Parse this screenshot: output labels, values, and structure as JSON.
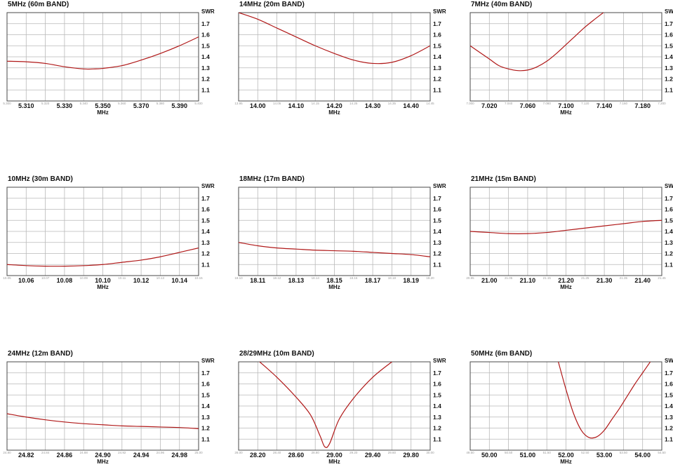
{
  "colors": {
    "curve": "#b01818",
    "grid": "#b9b9b9",
    "frame": "#4a4a4a",
    "text": "#111111"
  },
  "chart_data": [
    {
      "type": "line",
      "title": "5MHz (60m BAND)",
      "ylabel": "SWR",
      "xlabel": "MHz",
      "ylim": [
        1.0,
        1.8
      ],
      "yticks": [
        "1.1",
        "1.2",
        "1.3",
        "1.4",
        "1.5",
        "1.6",
        "1.7"
      ],
      "xlim": [
        5.3,
        5.4
      ],
      "xticks": [
        {
          "label": "5.300",
          "major": false
        },
        {
          "label": "5.310",
          "major": true
        },
        {
          "label": "5.320",
          "major": false
        },
        {
          "label": "5.330",
          "major": true
        },
        {
          "label": "5.340",
          "major": false
        },
        {
          "label": "5.350",
          "major": true
        },
        {
          "label": "5.360",
          "major": false
        },
        {
          "label": "5.370",
          "major": true
        },
        {
          "label": "5.380",
          "major": false
        },
        {
          "label": "5.390",
          "major": true
        },
        {
          "label": "5.400",
          "major": false
        }
      ],
      "series": [
        {
          "x": [
            5.3,
            5.31,
            5.32,
            5.33,
            5.34,
            5.345,
            5.35,
            5.36,
            5.37,
            5.38,
            5.39,
            5.4
          ],
          "y": [
            1.36,
            1.355,
            1.34,
            1.31,
            1.29,
            1.29,
            1.295,
            1.32,
            1.37,
            1.43,
            1.5,
            1.58
          ]
        }
      ]
    },
    {
      "type": "line",
      "title": "14MHz (20m BAND)",
      "ylabel": "SWR",
      "xlabel": "MHz",
      "ylim": [
        1.0,
        1.8
      ],
      "yticks": [
        "1.1",
        "1.2",
        "1.3",
        "1.4",
        "1.5",
        "1.6",
        "1.7"
      ],
      "xlim": [
        13.95,
        14.45
      ],
      "xticks": [
        {
          "label": "13.95",
          "major": false
        },
        {
          "label": "14.00",
          "major": true
        },
        {
          "label": "14.05",
          "major": false
        },
        {
          "label": "14.10",
          "major": true
        },
        {
          "label": "14.15",
          "major": false
        },
        {
          "label": "14.20",
          "major": true
        },
        {
          "label": "14.25",
          "major": false
        },
        {
          "label": "14.30",
          "major": true
        },
        {
          "label": "14.35",
          "major": false
        },
        {
          "label": "14.40",
          "major": true
        },
        {
          "label": "14.45",
          "major": false
        }
      ],
      "series": [
        {
          "x": [
            13.95,
            14.0,
            14.05,
            14.1,
            14.15,
            14.2,
            14.25,
            14.3,
            14.35,
            14.4,
            14.45
          ],
          "y": [
            1.8,
            1.74,
            1.66,
            1.58,
            1.5,
            1.43,
            1.37,
            1.34,
            1.35,
            1.41,
            1.5
          ]
        }
      ]
    },
    {
      "type": "line",
      "title": "7MHz (40m BAND)",
      "ylabel": "SWR",
      "xlabel": "MHz",
      "ylim": [
        1.0,
        1.8
      ],
      "yticks": [
        "1.1",
        "1.2",
        "1.3",
        "1.4",
        "1.5",
        "1.6",
        "1.7"
      ],
      "xlim": [
        7.0,
        7.2
      ],
      "xticks": [
        {
          "label": "7.000",
          "major": false
        },
        {
          "label": "7.020",
          "major": true
        },
        {
          "label": "7.040",
          "major": false
        },
        {
          "label": "7.060",
          "major": true
        },
        {
          "label": "7.080",
          "major": false
        },
        {
          "label": "7.100",
          "major": true
        },
        {
          "label": "7.120",
          "major": false
        },
        {
          "label": "7.140",
          "major": true
        },
        {
          "label": "7.160",
          "major": false
        },
        {
          "label": "7.180",
          "major": true
        },
        {
          "label": "7.200",
          "major": false
        }
      ],
      "series": [
        {
          "x": [
            7.0,
            7.01,
            7.02,
            7.03,
            7.04,
            7.05,
            7.06,
            7.07,
            7.08,
            7.09,
            7.1,
            7.11,
            7.12,
            7.13,
            7.139
          ],
          "y": [
            1.5,
            1.44,
            1.38,
            1.32,
            1.29,
            1.275,
            1.28,
            1.31,
            1.36,
            1.43,
            1.51,
            1.59,
            1.67,
            1.74,
            1.8
          ]
        }
      ]
    },
    {
      "type": "line",
      "title": "10MHz (30m BAND)",
      "ylabel": "SWR",
      "xlabel": "MHz",
      "ylim": [
        1.0,
        1.8
      ],
      "yticks": [
        "1.1",
        "1.2",
        "1.3",
        "1.4",
        "1.5",
        "1.6",
        "1.7"
      ],
      "xlim": [
        10.05,
        10.15
      ],
      "xticks": [
        {
          "label": "10.05",
          "major": false
        },
        {
          "label": "10.06",
          "major": true
        },
        {
          "label": "10.07",
          "major": false
        },
        {
          "label": "10.08",
          "major": true
        },
        {
          "label": "10.09",
          "major": false
        },
        {
          "label": "10.10",
          "major": true
        },
        {
          "label": "10.11",
          "major": false
        },
        {
          "label": "10.12",
          "major": true
        },
        {
          "label": "10.13",
          "major": false
        },
        {
          "label": "10.14",
          "major": true
        },
        {
          "label": "10.15",
          "major": false
        }
      ],
      "series": [
        {
          "x": [
            10.05,
            10.06,
            10.07,
            10.08,
            10.09,
            10.1,
            10.11,
            10.12,
            10.13,
            10.14,
            10.15
          ],
          "y": [
            1.1,
            1.09,
            1.085,
            1.085,
            1.09,
            1.1,
            1.12,
            1.14,
            1.17,
            1.21,
            1.25
          ]
        }
      ]
    },
    {
      "type": "line",
      "title": "18MHz (17m BAND)",
      "ylabel": "SWR",
      "xlabel": "MHz",
      "ylim": [
        1.0,
        1.8
      ],
      "yticks": [
        "1.1",
        "1.2",
        "1.3",
        "1.4",
        "1.5",
        "1.6",
        "1.7"
      ],
      "xlim": [
        18.1,
        18.2
      ],
      "xticks": [
        {
          "label": "18.10",
          "major": false
        },
        {
          "label": "18.11",
          "major": true
        },
        {
          "label": "18.12",
          "major": false
        },
        {
          "label": "18.13",
          "major": true
        },
        {
          "label": "18.14",
          "major": false
        },
        {
          "label": "18.15",
          "major": true
        },
        {
          "label": "18.16",
          "major": false
        },
        {
          "label": "18.17",
          "major": true
        },
        {
          "label": "18.18",
          "major": false
        },
        {
          "label": "18.19",
          "major": true
        },
        {
          "label": "18.20",
          "major": false
        }
      ],
      "series": [
        {
          "x": [
            18.1,
            18.11,
            18.12,
            18.13,
            18.14,
            18.15,
            18.16,
            18.17,
            18.18,
            18.19,
            18.2
          ],
          "y": [
            1.3,
            1.27,
            1.25,
            1.24,
            1.23,
            1.225,
            1.22,
            1.21,
            1.2,
            1.19,
            1.17
          ]
        }
      ]
    },
    {
      "type": "line",
      "title": "21MHz (15m BAND)",
      "ylabel": "SWR",
      "xlabel": "MHz",
      "ylim": [
        1.0,
        1.8
      ],
      "yticks": [
        "1.1",
        "1.2",
        "1.3",
        "1.4",
        "1.5",
        "1.6",
        "1.7"
      ],
      "xlim": [
        20.95,
        21.45
      ],
      "xticks": [
        {
          "label": "20.95",
          "major": false
        },
        {
          "label": "21.00",
          "major": true
        },
        {
          "label": "21.05",
          "major": false
        },
        {
          "label": "21.10",
          "major": true
        },
        {
          "label": "21.15",
          "major": false
        },
        {
          "label": "21.20",
          "major": true
        },
        {
          "label": "21.25",
          "major": false
        },
        {
          "label": "21.30",
          "major": true
        },
        {
          "label": "21.35",
          "major": false
        },
        {
          "label": "21.40",
          "major": true
        },
        {
          "label": "21.45",
          "major": false
        }
      ],
      "series": [
        {
          "x": [
            20.95,
            21.0,
            21.05,
            21.1,
            21.15,
            21.2,
            21.25,
            21.3,
            21.35,
            21.4,
            21.45
          ],
          "y": [
            1.4,
            1.39,
            1.38,
            1.38,
            1.39,
            1.41,
            1.43,
            1.45,
            1.47,
            1.49,
            1.5
          ]
        }
      ]
    },
    {
      "type": "line",
      "title": "24MHz (12m BAND)",
      "ylabel": "SWR",
      "xlabel": "MHz",
      "ylim": [
        1.0,
        1.8
      ],
      "yticks": [
        "1.1",
        "1.2",
        "1.3",
        "1.4",
        "1.5",
        "1.6",
        "1.7"
      ],
      "xlim": [
        24.8,
        25.0
      ],
      "xticks": [
        {
          "label": "24.80",
          "major": false
        },
        {
          "label": "24.82",
          "major": true
        },
        {
          "label": "24.84",
          "major": false
        },
        {
          "label": "24.86",
          "major": true
        },
        {
          "label": "24.88",
          "major": false
        },
        {
          "label": "24.90",
          "major": true
        },
        {
          "label": "24.92",
          "major": false
        },
        {
          "label": "24.94",
          "major": true
        },
        {
          "label": "24.96",
          "major": false
        },
        {
          "label": "24.98",
          "major": true
        },
        {
          "label": "25.00",
          "major": false
        }
      ],
      "series": [
        {
          "x": [
            24.8,
            24.82,
            24.84,
            24.86,
            24.88,
            24.9,
            24.92,
            24.94,
            24.96,
            24.98,
            25.0
          ],
          "y": [
            1.33,
            1.3,
            1.275,
            1.255,
            1.24,
            1.23,
            1.22,
            1.215,
            1.21,
            1.205,
            1.195
          ]
        }
      ]
    },
    {
      "type": "line",
      "title": "28/29MHz (10m BAND)",
      "ylabel": "SWR",
      "xlabel": "MHz",
      "ylim": [
        1.0,
        1.8
      ],
      "yticks": [
        "1.1",
        "1.2",
        "1.3",
        "1.4",
        "1.5",
        "1.6",
        "1.7"
      ],
      "xlim": [
        28.0,
        30.0
      ],
      "xticks": [
        {
          "label": "28.00",
          "major": false
        },
        {
          "label": "28.20",
          "major": true
        },
        {
          "label": "28.40",
          "major": false
        },
        {
          "label": "28.60",
          "major": true
        },
        {
          "label": "28.80",
          "major": false
        },
        {
          "label": "29.00",
          "major": true
        },
        {
          "label": "29.20",
          "major": false
        },
        {
          "label": "29.40",
          "major": true
        },
        {
          "label": "29.60",
          "major": false
        },
        {
          "label": "29.80",
          "major": true
        },
        {
          "label": "30.00",
          "major": false
        }
      ],
      "series": [
        {
          "x": [
            28.22,
            28.4,
            28.6,
            28.75,
            28.85,
            28.9,
            28.95,
            29.05,
            29.2,
            29.4,
            29.6
          ],
          "y": [
            1.8,
            1.66,
            1.48,
            1.32,
            1.13,
            1.03,
            1.06,
            1.28,
            1.47,
            1.66,
            1.8
          ]
        }
      ]
    },
    {
      "type": "line",
      "title": "50MHz (6m BAND)",
      "ylabel": "SWR",
      "xlabel": "MHz",
      "ylim": [
        1.0,
        1.8
      ],
      "yticks": [
        "1.1",
        "1.2",
        "1.3",
        "1.4",
        "1.5",
        "1.6",
        "1.7"
      ],
      "xlim": [
        49.5,
        54.5
      ],
      "xticks": [
        {
          "label": "49.50",
          "major": false
        },
        {
          "label": "50.00",
          "major": true
        },
        {
          "label": "50.50",
          "major": false
        },
        {
          "label": "51.00",
          "major": true
        },
        {
          "label": "51.50",
          "major": false
        },
        {
          "label": "52.00",
          "major": true
        },
        {
          "label": "52.50",
          "major": false
        },
        {
          "label": "53.00",
          "major": true
        },
        {
          "label": "53.50",
          "major": false
        },
        {
          "label": "54.00",
          "major": true
        },
        {
          "label": "54.50",
          "major": false
        }
      ],
      "series": [
        {
          "x": [
            51.8,
            52.0,
            52.2,
            52.4,
            52.6,
            52.8,
            53.0,
            53.2,
            53.4,
            53.6,
            53.8,
            54.0,
            54.2
          ],
          "y": [
            1.8,
            1.55,
            1.33,
            1.18,
            1.115,
            1.12,
            1.18,
            1.28,
            1.38,
            1.49,
            1.6,
            1.7,
            1.8
          ]
        }
      ]
    }
  ]
}
